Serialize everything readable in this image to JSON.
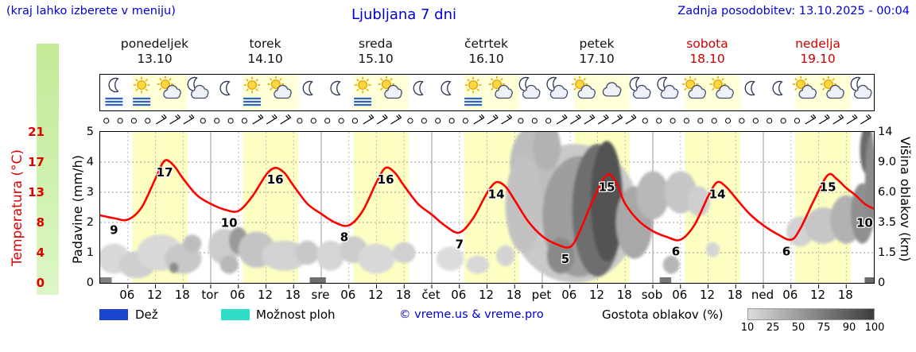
{
  "header": {
    "hint": "(kraj lahko izberete v meniju)",
    "title": "Ljubljana 7 dni",
    "updated": "Zadnja posodobitev: 13.10.2025 - 00:04"
  },
  "days": [
    {
      "name": "ponedeljek",
      "date": "13.10",
      "color": "#111111"
    },
    {
      "name": "torek",
      "date": "14.10",
      "color": "#111111"
    },
    {
      "name": "sreda",
      "date": "15.10",
      "color": "#111111"
    },
    {
      "name": "četrtek",
      "date": "16.10",
      "color": "#111111"
    },
    {
      "name": "petek",
      "date": "17.10",
      "color": "#111111"
    },
    {
      "name": "sobota",
      "date": "18.10",
      "color": "#cc0000"
    },
    {
      "name": "nedelja",
      "date": "19.10",
      "color": "#cc0000"
    }
  ],
  "axes": {
    "temperature": {
      "label": "Temperatura (°C)",
      "color": "#e00000",
      "ticks": [
        "21",
        "17",
        "13",
        "8",
        "4",
        "0"
      ]
    },
    "precip": {
      "label": "Padavine (mm/h)",
      "ticks": [
        "5",
        "4",
        "3",
        "2",
        "1",
        "0"
      ]
    },
    "cloudheight": {
      "label": "Višina oblakov (km)",
      "ticks": [
        "14",
        "9.0",
        "6.0",
        "3.5",
        "1.5",
        "0"
      ]
    },
    "time_ticks": [
      "06",
      "12",
      "18"
    ],
    "day_abbrevs": [
      "tor",
      "sre",
      "čet",
      "pet",
      "sob",
      "ned"
    ]
  },
  "legend": {
    "rain": "Dež",
    "rain_color": "#1a46cf",
    "showers": "Možnost ploh",
    "showers_color": "#2fdec6",
    "copyright": "© vreme.us & vreme.pro",
    "density_label": "Gostota oblakov (%)",
    "density_ticks": [
      "10",
      "25",
      "50",
      "75",
      "90",
      "100"
    ]
  },
  "icons_row": [
    [
      "moon-fog",
      "sun-fog",
      "sun-cloud",
      "moon-cloud"
    ],
    [
      "moon",
      "sun-fog",
      "sun-cloud",
      "moon"
    ],
    [
      "moon",
      "sun-fog",
      "sun-cloud",
      "moon"
    ],
    [
      "moon",
      "sun-fog",
      "sun-cloud",
      "moon-cloud"
    ],
    [
      "moon-cloud",
      "sun-cloud",
      "cloud",
      "moon-cloud"
    ],
    [
      "moon-cloud",
      "sun-cloud",
      "sun-cloud",
      "moon"
    ],
    [
      "moon",
      "sun-cloud",
      "sun-cloud",
      "moon-cloud"
    ]
  ],
  "chart_data": {
    "type": "line",
    "title": "Ljubljana 7 dni",
    "x_axis": "hours from Mon 13.10 00:00 (0-168, 7 days)",
    "degc_per_unit": 4.2,
    "line_color": "#ff0000",
    "daylight": [
      7,
      19
    ],
    "daylight_color": "#fdffc2",
    "icon_band_day_color": "#ffffd8",
    "temperature_series": [
      [
        0,
        9.4
      ],
      [
        3,
        9.0
      ],
      [
        6,
        8.8
      ],
      [
        9,
        10.5
      ],
      [
        12,
        14.5
      ],
      [
        14,
        17
      ],
      [
        16,
        16.3
      ],
      [
        18,
        14.5
      ],
      [
        21,
        12.2
      ],
      [
        24,
        11
      ],
      [
        27,
        10.2
      ],
      [
        30,
        10
      ],
      [
        33,
        12
      ],
      [
        36,
        15
      ],
      [
        38,
        16
      ],
      [
        40,
        15.3
      ],
      [
        42,
        13.5
      ],
      [
        45,
        11
      ],
      [
        48,
        9.6
      ],
      [
        51,
        8.4
      ],
      [
        54,
        8
      ],
      [
        57,
        10
      ],
      [
        60,
        14
      ],
      [
        62,
        16
      ],
      [
        64,
        15.3
      ],
      [
        66,
        13.5
      ],
      [
        69,
        11
      ],
      [
        72,
        9.5
      ],
      [
        75,
        7.9
      ],
      [
        78,
        7
      ],
      [
        81,
        9
      ],
      [
        84,
        12.5
      ],
      [
        86,
        14
      ],
      [
        88,
        13.4
      ],
      [
        90,
        11.5
      ],
      [
        93,
        8.5
      ],
      [
        96,
        6.5
      ],
      [
        99,
        5.4
      ],
      [
        102,
        5
      ],
      [
        104,
        7
      ],
      [
        107,
        11.5
      ],
      [
        110,
        15
      ],
      [
        112,
        14
      ],
      [
        114,
        11
      ],
      [
        117,
        8.6
      ],
      [
        120,
        7.2
      ],
      [
        123,
        6.4
      ],
      [
        126,
        6
      ],
      [
        129,
        8
      ],
      [
        132,
        12
      ],
      [
        134,
        14
      ],
      [
        136,
        13.3
      ],
      [
        138,
        11.8
      ],
      [
        141,
        9.6
      ],
      [
        144,
        8
      ],
      [
        147,
        6.8
      ],
      [
        150,
        6
      ],
      [
        152,
        7.5
      ],
      [
        155,
        11.5
      ],
      [
        158,
        15
      ],
      [
        160,
        14.4
      ],
      [
        162,
        13.2
      ],
      [
        164,
        12.2
      ],
      [
        166,
        11
      ],
      [
        168,
        10.3
      ]
    ],
    "point_labels": [
      {
        "h": 3,
        "t": 9,
        "text": "9"
      },
      {
        "h": 14,
        "t": 17,
        "text": "17"
      },
      {
        "h": 28,
        "t": 10,
        "text": "10"
      },
      {
        "h": 38,
        "t": 16,
        "text": "16"
      },
      {
        "h": 53,
        "t": 8,
        "text": "8"
      },
      {
        "h": 62,
        "t": 16,
        "text": "16"
      },
      {
        "h": 78,
        "t": 7,
        "text": "7"
      },
      {
        "h": 86,
        "t": 14,
        "text": "14"
      },
      {
        "h": 101,
        "t": 5,
        "text": "5"
      },
      {
        "h": 110,
        "t": 15,
        "text": "15"
      },
      {
        "h": 125,
        "t": 6,
        "text": "6"
      },
      {
        "h": 134,
        "t": 14,
        "text": "14"
      },
      {
        "h": 149,
        "t": 6,
        "text": "6"
      },
      {
        "h": 158,
        "t": 15,
        "text": "15"
      },
      {
        "h": 166,
        "t": 10,
        "text": "10"
      }
    ],
    "clouds": [
      {
        "h": 3,
        "u": 0.8,
        "rh": 3.5,
        "ru": 0.5,
        "f": "#d8d8d8"
      },
      {
        "h": 8,
        "u": 0.6,
        "rh": 4,
        "ru": 0.45,
        "f": "#cfcfcf"
      },
      {
        "h": 13,
        "u": 1.0,
        "rh": 5,
        "ru": 0.6,
        "f": "#d8d8d8"
      },
      {
        "h": 18,
        "u": 0.8,
        "rh": 4,
        "ru": 0.5,
        "f": "#c8c8c8"
      },
      {
        "h": 20,
        "u": 1.3,
        "rh": 2,
        "ru": 0.3,
        "f": "#bdbdbd"
      },
      {
        "h": 16,
        "u": 0.5,
        "rh": 1,
        "ru": 0.18,
        "f": "#8f8f8f"
      },
      {
        "h": 27,
        "u": 1.2,
        "rh": 3.5,
        "ru": 0.6,
        "f": "#cccccc"
      },
      {
        "h": 30,
        "u": 1.4,
        "rh": 2,
        "ru": 0.45,
        "f": "#9a9a9a"
      },
      {
        "h": 34,
        "u": 1.1,
        "rh": 4,
        "ru": 0.6,
        "f": "#c4c4c4"
      },
      {
        "h": 40,
        "u": 0.9,
        "rh": 5,
        "ru": 0.5,
        "f": "#d2d2d2"
      },
      {
        "h": 45,
        "u": 1.0,
        "rh": 2.5,
        "ru": 0.4,
        "f": "#c8c8c8"
      },
      {
        "h": 28,
        "u": 0.6,
        "rh": 2,
        "ru": 0.3,
        "f": "#b8b8b8"
      },
      {
        "h": 50,
        "u": 0.9,
        "rh": 3,
        "ru": 0.5,
        "f": "#d5d5d5"
      },
      {
        "h": 55,
        "u": 1.1,
        "rh": 3,
        "ru": 0.45,
        "f": "#cccccc"
      },
      {
        "h": 60,
        "u": 0.8,
        "rh": 4,
        "ru": 0.5,
        "f": "#d8d8d8"
      },
      {
        "h": 66,
        "u": 1.0,
        "rh": 2.5,
        "ru": 0.35,
        "f": "#d0d0d0"
      },
      {
        "h": 76,
        "u": 0.8,
        "rh": 3,
        "ru": 0.4,
        "f": "#dcdcdc"
      },
      {
        "h": 82,
        "u": 0.6,
        "rh": 2.5,
        "ru": 0.3,
        "f": "#d8d8d8"
      },
      {
        "h": 88,
        "u": 0.9,
        "rh": 2,
        "ru": 0.35,
        "f": "#d4d4d4"
      },
      {
        "h": 103,
        "u": 2.3,
        "rh": 14,
        "ru": 2.3,
        "f": "#c9c9c9"
      },
      {
        "h": 94,
        "u": 3.9,
        "rh": 5,
        "ru": 1.3,
        "f": "#bdbdbd"
      },
      {
        "h": 92,
        "u": 2.6,
        "rh": 4,
        "ru": 1.6,
        "f": "#c2c2c2"
      },
      {
        "h": 97,
        "u": 4.5,
        "rh": 3,
        "ru": 0.8,
        "f": "#b2b2b2"
      },
      {
        "h": 104,
        "u": 2.2,
        "rh": 8,
        "ru": 2.0,
        "f": "#9e9e9e"
      },
      {
        "h": 108,
        "u": 2.4,
        "rh": 5.5,
        "ru": 2.2,
        "f": "#6e6e6e"
      },
      {
        "h": 110,
        "u": 2.7,
        "rh": 3.5,
        "ru": 2.0,
        "f": "#525252"
      },
      {
        "h": 100,
        "u": 0.9,
        "rh": 3,
        "ru": 0.6,
        "f": "#8a8a8a"
      },
      {
        "h": 116,
        "u": 2.0,
        "rh": 4,
        "ru": 1.2,
        "f": "#a8a8a8"
      },
      {
        "h": 120,
        "u": 2.9,
        "rh": 3.5,
        "ru": 0.8,
        "f": "#b8b8b8"
      },
      {
        "h": 126,
        "u": 3.0,
        "rh": 3.5,
        "ru": 0.7,
        "f": "#c6c6c6"
      },
      {
        "h": 130,
        "u": 2.7,
        "rh": 2.5,
        "ru": 0.5,
        "f": "#cecece"
      },
      {
        "h": 124,
        "u": 0.6,
        "rh": 1.8,
        "ru": 0.3,
        "f": "#b5b5b5"
      },
      {
        "h": 133,
        "u": 1.1,
        "rh": 1.5,
        "ru": 0.25,
        "f": "#d5d5d5"
      },
      {
        "h": 152,
        "u": 1.7,
        "rh": 3,
        "ru": 0.5,
        "f": "#d2d2d2"
      },
      {
        "h": 157,
        "u": 1.9,
        "rh": 4,
        "ru": 0.6,
        "f": "#c6c6c6"
      },
      {
        "h": 162,
        "u": 2.1,
        "rh": 3.5,
        "ru": 0.8,
        "f": "#b2b2b2"
      },
      {
        "h": 165.5,
        "u": 2.3,
        "rh": 2.5,
        "ru": 1.0,
        "f": "#909090"
      },
      {
        "h": 166.5,
        "u": 4.4,
        "rh": 1.5,
        "ru": 0.8,
        "f": "#6a6a6a"
      },
      {
        "h": 167.3,
        "u": 3.3,
        "rh": 1.2,
        "ru": 1.6,
        "f": "#8a8a8a"
      }
    ],
    "ground_clouds": [
      {
        "h0": 0,
        "h1": 2.5,
        "f": "#808080"
      },
      {
        "h0": 45.5,
        "h1": 49,
        "f": "#6e6e6e"
      },
      {
        "h0": 121.5,
        "h1": 124,
        "f": "#777777"
      },
      {
        "h0": 166,
        "h1": 168,
        "f": "#6a6a6a"
      }
    ],
    "wind_hours": [
      [
        12,
        21
      ],
      [
        33,
        42
      ],
      [
        56,
        65
      ],
      [
        80,
        89
      ],
      [
        99,
        118
      ],
      [
        152,
        167
      ]
    ]
  }
}
